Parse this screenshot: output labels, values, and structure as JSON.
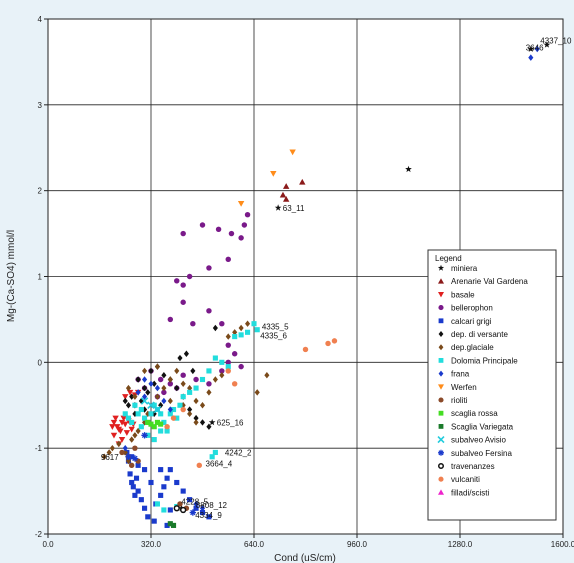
{
  "chart_data": {
    "type": "scatter",
    "xlabel": "Cond (uS/cm)",
    "ylabel": "Mg-(Ca-SO4) mmol/l",
    "xlim": [
      0,
      1600
    ],
    "ylim": [
      -2,
      4
    ],
    "xticks": [
      "0.0",
      "320.0",
      "640.0",
      "960.0",
      "1280.0",
      "1600.0"
    ],
    "xtick_values": [
      0,
      320,
      640,
      960,
      1280,
      1600
    ],
    "yticks": [
      "-2",
      "-1",
      "0",
      "1",
      "2",
      "3",
      "4"
    ],
    "ytick_values": [
      -2,
      -1,
      0,
      1,
      2,
      3,
      4
    ],
    "grid": true,
    "legend": {
      "title": "Legend",
      "placement": "lower-right",
      "entries": [
        "miniera",
        "Arenarie Val Gardena",
        "basale",
        "bellerophon",
        "calcari grigi",
        "dep. di versante",
        "dep.glaciale",
        "Dolomia Principale",
        "frana",
        "Werfen",
        "rioliti",
        "scaglia rossa",
        "Scaglia Variegata",
        "subalveo Avisio",
        "subalveo Fersina",
        "travenanzes",
        "vulcaniti",
        "filladi/scisti"
      ]
    },
    "series": [
      {
        "name": "miniera",
        "marker": "star",
        "color": "#111111",
        "points": [
          [
            1550,
            3.7
          ],
          [
            1500,
            3.65
          ],
          [
            1120,
            2.25
          ],
          [
            715,
            1.8
          ],
          [
            510,
            -0.7
          ],
          [
            415,
            -1.7
          ]
        ]
      },
      {
        "name": "Arenarie Val Gardena",
        "marker": "triangle-up",
        "color": "#8b1a1a",
        "points": [
          [
            740,
            2.05
          ],
          [
            790,
            2.1
          ],
          [
            730,
            1.95
          ],
          [
            740,
            1.9
          ]
        ]
      },
      {
        "name": "basale",
        "marker": "triangle-down",
        "color": "#e02020",
        "points": [
          [
            205,
            -0.7
          ],
          [
            215,
            -0.75
          ],
          [
            220,
            -0.78
          ],
          [
            230,
            -0.7
          ],
          [
            210,
            -0.65
          ],
          [
            200,
            -0.75
          ],
          [
            240,
            -0.72
          ],
          [
            235,
            -0.65
          ],
          [
            255,
            -0.7
          ],
          [
            225,
            -0.8
          ],
          [
            260,
            -0.78
          ],
          [
            245,
            -0.82
          ],
          [
            230,
            -0.9
          ],
          [
            220,
            -0.95
          ],
          [
            205,
            -0.85
          ],
          [
            250,
            -0.68
          ],
          [
            265,
            -0.72
          ],
          [
            270,
            -0.38
          ],
          [
            255,
            -0.35
          ],
          [
            240,
            -0.4
          ],
          [
            280,
            -0.35
          ]
        ]
      },
      {
        "name": "bellerophon",
        "marker": "circle",
        "color": "#7a1a8a",
        "points": [
          [
            480,
            1.6
          ],
          [
            530,
            1.55
          ],
          [
            570,
            1.5
          ],
          [
            610,
            1.6
          ],
          [
            620,
            1.72
          ],
          [
            600,
            1.45
          ],
          [
            420,
            1.5
          ],
          [
            560,
            1.2
          ],
          [
            500,
            1.1
          ],
          [
            440,
            1.0
          ],
          [
            420,
            0.9
          ],
          [
            400,
            0.95
          ],
          [
            420,
            0.7
          ],
          [
            380,
            0.5
          ],
          [
            450,
            0.45
          ],
          [
            500,
            0.6
          ],
          [
            540,
            0.45
          ],
          [
            560,
            0.2
          ],
          [
            580,
            0.1
          ],
          [
            560,
            0.0
          ],
          [
            600,
            -0.05
          ],
          [
            540,
            -0.1
          ],
          [
            500,
            -0.25
          ],
          [
            460,
            -0.2
          ],
          [
            420,
            -0.15
          ],
          [
            400,
            -0.3
          ],
          [
            360,
            -0.35
          ],
          [
            340,
            -0.4
          ],
          [
            300,
            -0.3
          ],
          [
            280,
            -0.2
          ],
          [
            320,
            -0.1
          ],
          [
            350,
            -0.2
          ],
          [
            380,
            -0.25
          ]
        ]
      },
      {
        "name": "calcari grigi",
        "marker": "square",
        "color": "#1a3acc",
        "points": [
          [
            245,
            -1.05
          ],
          [
            250,
            -1.15
          ],
          [
            255,
            -1.3
          ],
          [
            260,
            -1.4
          ],
          [
            265,
            -1.45
          ],
          [
            270,
            -1.55
          ],
          [
            275,
            -1.35
          ],
          [
            280,
            -1.5
          ],
          [
            290,
            -1.6
          ],
          [
            300,
            -1.7
          ],
          [
            310,
            -1.8
          ],
          [
            330,
            -1.85
          ],
          [
            335,
            -1.65
          ],
          [
            350,
            -1.55
          ],
          [
            360,
            -1.45
          ],
          [
            370,
            -1.35
          ],
          [
            380,
            -1.25
          ],
          [
            400,
            -1.4
          ],
          [
            420,
            -1.5
          ],
          [
            440,
            -1.6
          ],
          [
            460,
            -1.7
          ],
          [
            480,
            -1.75
          ],
          [
            500,
            -1.8
          ],
          [
            370,
            -1.9
          ],
          [
            380,
            -1.72
          ],
          [
            320,
            -1.4
          ],
          [
            300,
            -1.25
          ],
          [
            280,
            -1.2
          ],
          [
            260,
            -1.1
          ],
          [
            350,
            -1.25
          ]
        ]
      },
      {
        "name": "dep. di versante",
        "marker": "diamond",
        "color": "#111111",
        "points": [
          [
            280,
            -0.2
          ],
          [
            300,
            -0.3
          ],
          [
            320,
            -0.1
          ],
          [
            340,
            -0.05
          ],
          [
            360,
            -0.15
          ],
          [
            380,
            -0.2
          ],
          [
            260,
            -0.4
          ],
          [
            270,
            -0.5
          ],
          [
            290,
            -0.45
          ],
          [
            310,
            -0.35
          ],
          [
            330,
            -0.6
          ],
          [
            350,
            -0.5
          ],
          [
            400,
            -0.3
          ],
          [
            420,
            -0.4
          ],
          [
            440,
            -0.55
          ],
          [
            460,
            -0.65
          ],
          [
            480,
            -0.7
          ],
          [
            500,
            -0.75
          ],
          [
            520,
            0.4
          ],
          [
            410,
            0.05
          ],
          [
            430,
            0.1
          ],
          [
            450,
            -0.1
          ],
          [
            300,
            -0.55
          ],
          [
            270,
            -0.6
          ],
          [
            250,
            -0.5
          ],
          [
            240,
            -0.45
          ],
          [
            330,
            -0.25
          ]
        ]
      },
      {
        "name": "dep.glaciale",
        "marker": "diamond",
        "color": "#7a4a1a",
        "points": [
          [
            175,
            -1.1
          ],
          [
            190,
            -1.05
          ],
          [
            200,
            -1.0
          ],
          [
            220,
            -0.95
          ],
          [
            240,
            -1.05
          ],
          [
            250,
            -1.15
          ],
          [
            260,
            -0.9
          ],
          [
            270,
            -0.85
          ],
          [
            280,
            -0.8
          ],
          [
            300,
            -0.7
          ],
          [
            310,
            -0.6
          ],
          [
            330,
            -0.5
          ],
          [
            340,
            -0.4
          ],
          [
            360,
            -0.3
          ],
          [
            380,
            -0.2
          ],
          [
            400,
            -0.1
          ],
          [
            420,
            -0.25
          ],
          [
            440,
            -0.3
          ],
          [
            460,
            -0.45
          ],
          [
            480,
            -0.5
          ],
          [
            500,
            -0.35
          ],
          [
            520,
            -0.2
          ],
          [
            540,
            -0.15
          ],
          [
            560,
            0.3
          ],
          [
            580,
            0.35
          ],
          [
            600,
            0.4
          ],
          [
            620,
            0.45
          ],
          [
            650,
            -0.35
          ],
          [
            680,
            -0.15
          ],
          [
            340,
            -0.05
          ],
          [
            270,
            -0.4
          ],
          [
            300,
            -0.1
          ],
          [
            250,
            -0.3
          ],
          [
            380,
            -0.45
          ],
          [
            420,
            -0.5
          ],
          [
            440,
            -0.6
          ],
          [
            460,
            -0.7
          ]
        ]
      },
      {
        "name": "Dolomia Principale",
        "marker": "square",
        "color": "#22dddd",
        "points": [
          [
            270,
            -0.5
          ],
          [
            280,
            -0.6
          ],
          [
            290,
            -0.55
          ],
          [
            300,
            -0.65
          ],
          [
            310,
            -0.7
          ],
          [
            320,
            -0.6
          ],
          [
            330,
            -0.5
          ],
          [
            340,
            -0.55
          ],
          [
            350,
            -0.6
          ],
          [
            360,
            -0.7
          ],
          [
            370,
            -0.8
          ],
          [
            380,
            -0.6
          ],
          [
            390,
            -0.55
          ],
          [
            400,
            -0.65
          ],
          [
            410,
            -0.5
          ],
          [
            420,
            -0.4
          ],
          [
            440,
            -0.35
          ],
          [
            460,
            -0.3
          ],
          [
            480,
            -0.2
          ],
          [
            500,
            -0.1
          ],
          [
            520,
            0.05
          ],
          [
            540,
            0.0
          ],
          [
            560,
            -0.05
          ],
          [
            580,
            0.3
          ],
          [
            600,
            0.32
          ],
          [
            620,
            0.35
          ],
          [
            640,
            0.45
          ],
          [
            650,
            0.38
          ],
          [
            520,
            -1.05
          ],
          [
            510,
            -1.1
          ],
          [
            340,
            -1.65
          ],
          [
            360,
            -1.72
          ],
          [
            400,
            -1.68
          ],
          [
            260,
            -0.7
          ],
          [
            250,
            -0.65
          ],
          [
            240,
            -0.6
          ],
          [
            290,
            -0.75
          ],
          [
            310,
            -0.85
          ],
          [
            330,
            -0.9
          ],
          [
            350,
            -0.8
          ]
        ]
      },
      {
        "name": "frana",
        "marker": "diamond",
        "color": "#1a3acc",
        "points": [
          [
            1520,
            3.65
          ],
          [
            1500,
            3.55
          ],
          [
            300,
            -0.2
          ],
          [
            320,
            -0.25
          ],
          [
            340,
            -0.3
          ],
          [
            300,
            -0.4
          ],
          [
            280,
            -0.35
          ],
          [
            360,
            -0.45
          ],
          [
            380,
            -0.55
          ],
          [
            460,
            -1.65
          ],
          [
            480,
            -1.7
          ],
          [
            240,
            -1.0
          ]
        ]
      },
      {
        "name": "Werfen",
        "marker": "triangle-down",
        "color": "#ff8c1a",
        "points": [
          [
            760,
            2.45
          ],
          [
            700,
            2.2
          ],
          [
            600,
            1.85
          ]
        ]
      },
      {
        "name": "rioliti",
        "marker": "circle",
        "color": "#8b4a2a",
        "points": [
          [
            230,
            -1.05
          ],
          [
            250,
            -1.1
          ],
          [
            270,
            -1.0
          ],
          [
            280,
            -1.15
          ],
          [
            260,
            -1.2
          ],
          [
            430,
            -1.7
          ],
          [
            410,
            -1.65
          ]
        ]
      },
      {
        "name": "scaglia rossa",
        "marker": "square",
        "color": "#44dd22",
        "points": [
          [
            310,
            -0.7
          ],
          [
            320,
            -0.72
          ],
          [
            330,
            -0.75
          ],
          [
            340,
            -0.7
          ],
          [
            350,
            -0.72
          ]
        ]
      },
      {
        "name": "Scaglia Variegata",
        "marker": "square",
        "color": "#1a7a2a",
        "points": [
          [
            380,
            -1.88
          ],
          [
            390,
            -1.9
          ]
        ]
      },
      {
        "name": "subalveo Avisio",
        "marker": "x",
        "color": "#22ccdd",
        "points": [
          [
            300,
            -0.45
          ],
          [
            320,
            -0.5
          ],
          [
            340,
            -0.55
          ]
        ]
      },
      {
        "name": "subalveo Fersina",
        "marker": "asterisk",
        "color": "#1a3acc",
        "points": [
          [
            250,
            -1.1
          ],
          [
            270,
            -1.12
          ],
          [
            300,
            -0.85
          ],
          [
            450,
            -1.75
          ]
        ]
      },
      {
        "name": "travenanzes",
        "marker": "circle-open",
        "color": "#111111",
        "points": [
          [
            400,
            -1.7
          ],
          [
            420,
            -1.72
          ]
        ]
      },
      {
        "name": "vulcaniti",
        "marker": "circle",
        "color": "#f08050",
        "points": [
          [
            890,
            0.25
          ],
          [
            870,
            0.22
          ],
          [
            800,
            0.15
          ],
          [
            560,
            -0.1
          ],
          [
            580,
            -0.25
          ],
          [
            470,
            -1.2
          ],
          [
            420,
            -0.55
          ],
          [
            390,
            -0.65
          ],
          [
            370,
            -0.75
          ]
        ]
      },
      {
        "name": "filladi/scisti",
        "marker": "triangle-up",
        "color": "#ee22cc",
        "points": []
      }
    ],
    "annotations": [
      {
        "text": "4337_10",
        "x": 1520,
        "y": 3.75
      },
      {
        "text": "3646",
        "x": 1475,
        "y": 3.67
      },
      {
        "text": "63_11",
        "x": 720,
        "y": 1.8
      },
      {
        "text": "4335_5",
        "x": 655,
        "y": 0.42
      },
      {
        "text": "4335_6",
        "x": 650,
        "y": 0.31
      },
      {
        "text": "625_16",
        "x": 515,
        "y": -0.7
      },
      {
        "text": "4242_2",
        "x": 540,
        "y": -1.05
      },
      {
        "text": "3664_4",
        "x": 480,
        "y": -1.18
      },
      {
        "text": "9617",
        "x": 155,
        "y": -1.1
      },
      {
        "text": "4228_5",
        "x": 405,
        "y": -1.62
      },
      {
        "text": "8808_12",
        "x": 450,
        "y": -1.66
      },
      {
        "text": "4334_9",
        "x": 448,
        "y": -1.78
      }
    ]
  }
}
